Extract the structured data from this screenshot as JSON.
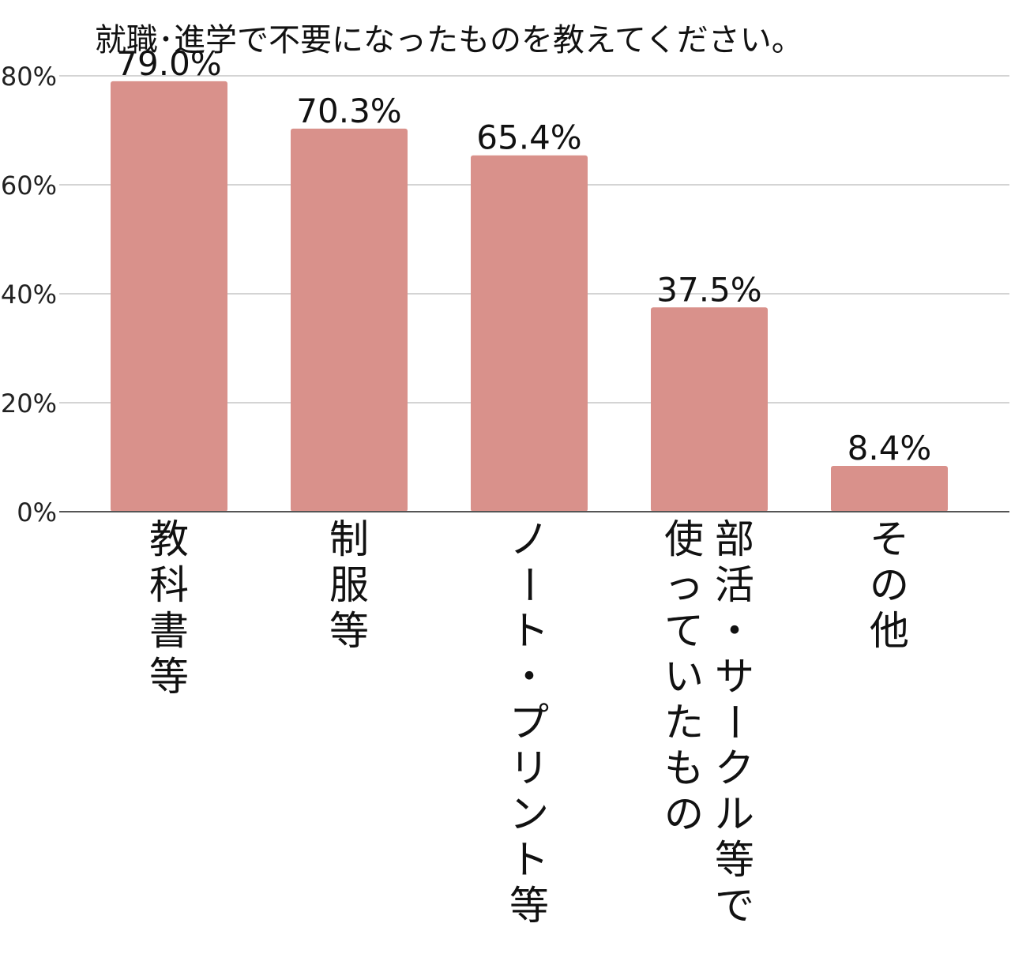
{
  "chart_data": {
    "type": "bar",
    "title": "就職･進学で不要になったものを教えてください。",
    "categories": [
      [
        "教科書等"
      ],
      [
        "制服等"
      ],
      [
        "ノート・プリント等"
      ],
      [
        "部活・サークル等で",
        "使っていたもの"
      ],
      [
        "その他"
      ]
    ],
    "values": [
      79.0,
      70.3,
      65.4,
      37.5,
      8.4
    ],
    "data_labels": [
      "79.0%",
      "70.3%",
      "65.4%",
      "37.5%",
      "8.4%"
    ],
    "y_ticks": [
      {
        "value": 0,
        "label": "0%"
      },
      {
        "value": 20,
        "label": "20%"
      },
      {
        "value": 40,
        "label": "40%"
      },
      {
        "value": 60,
        "label": "60%"
      },
      {
        "value": 80,
        "label": "80%"
      }
    ],
    "ylim": [
      0,
      80
    ],
    "grid": true,
    "bar_color": "#d9918b",
    "legend": "none"
  }
}
